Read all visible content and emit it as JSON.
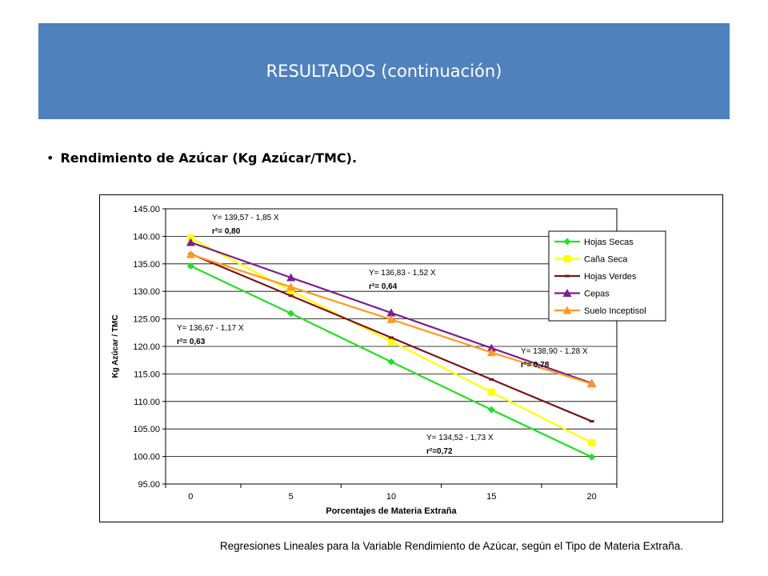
{
  "header": {
    "title": "RESULTADOS (continuación)"
  },
  "bullet": {
    "symbol": "•",
    "text": "Rendimiento de Azúcar (Kg Azúcar/TMC)."
  },
  "caption": "Regresiones Lineales para la Variable Rendimiento de Azúcar, según el Tipo de Materia Extraña.",
  "chart_data": {
    "type": "line",
    "title": "",
    "xlabel": "Porcentajes de Materia Extraña",
    "ylabel": "Kg Azúcar / TMC",
    "x": [
      0,
      5,
      10,
      15,
      20
    ],
    "ylim": [
      95,
      145
    ],
    "yticks": [
      "95.00",
      "100.00",
      "105.00",
      "110.00",
      "115.00",
      "120.00",
      "125.00",
      "130.00",
      "135.00",
      "140.00",
      "145.00"
    ],
    "xticks": [
      "0",
      "5",
      "10",
      "15",
      "20"
    ],
    "grid": "horizontal",
    "legend_position": "right",
    "series": [
      {
        "name": "Hojas Secas",
        "color": "#22e022",
        "marker": "diamond",
        "values": [
          134.6,
          126.0,
          117.2,
          108.5,
          99.9
        ]
      },
      {
        "name": "Caña Seca",
        "color": "#ffff00",
        "marker": "square",
        "values": [
          139.7,
          130.1,
          120.9,
          111.7,
          102.5
        ]
      },
      {
        "name": "Hojas Verdes",
        "color": "#7b1416",
        "marker": "dash",
        "values": [
          136.8,
          129.2,
          121.6,
          114.0,
          106.4
        ]
      },
      {
        "name": "Cepas",
        "color": "#7a2090",
        "marker": "triangle",
        "values": [
          138.9,
          132.5,
          126.1,
          119.7,
          113.3
        ]
      },
      {
        "name": "Suelo Inceptisol",
        "color": "#ff9a1f",
        "marker": "triangle",
        "values": [
          136.7,
          130.8,
          124.9,
          118.9,
          113.2
        ]
      }
    ],
    "annotations": [
      {
        "eq": "Y= 139,57 - 1,85 X",
        "r2": "r²= 0,80"
      },
      {
        "eq": "Y= 136,83 - 1,52 X",
        "r2": "r²= 0,64"
      },
      {
        "eq": "Y= 136,67 - 1,17 X",
        "r2": "r²= 0,63"
      },
      {
        "eq": "Y= 138,90 - 1,28 X",
        "r2": "r²= 0,78"
      },
      {
        "eq": "Y= 134,52 - 1,73 X",
        "r2": "r²=0,72"
      }
    ]
  }
}
